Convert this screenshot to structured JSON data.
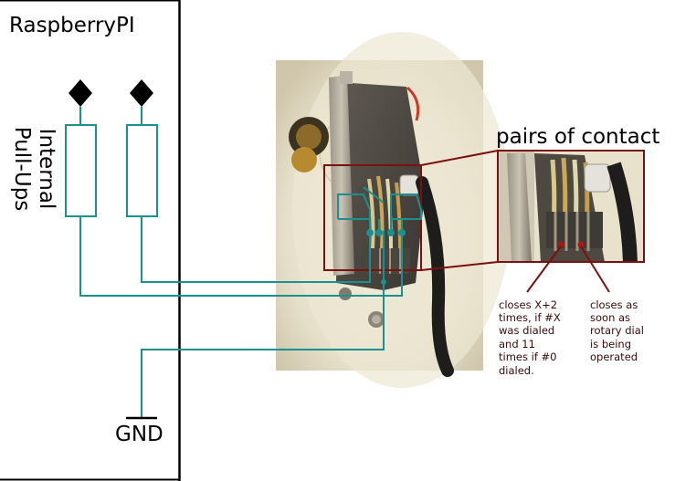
{
  "board": {
    "title": "RaspberryPI",
    "pullups_label": [
      "Internal",
      "Pull-Ups"
    ],
    "gnd_label": "GND"
  },
  "zoom": {
    "title": "pairs of contact"
  },
  "annotations": {
    "left": [
      "closes X+2",
      "times, if #X",
      "was dialed",
      "and 11",
      "times if #0",
      "dialed."
    ],
    "right": [
      "closes as",
      "soon as",
      "rotary dial",
      "is being",
      "operated"
    ]
  },
  "colors": {
    "wire": "#1a9090",
    "frame": "#7a1010",
    "annotation_text": "#3a0a0a",
    "line": "#000000"
  }
}
